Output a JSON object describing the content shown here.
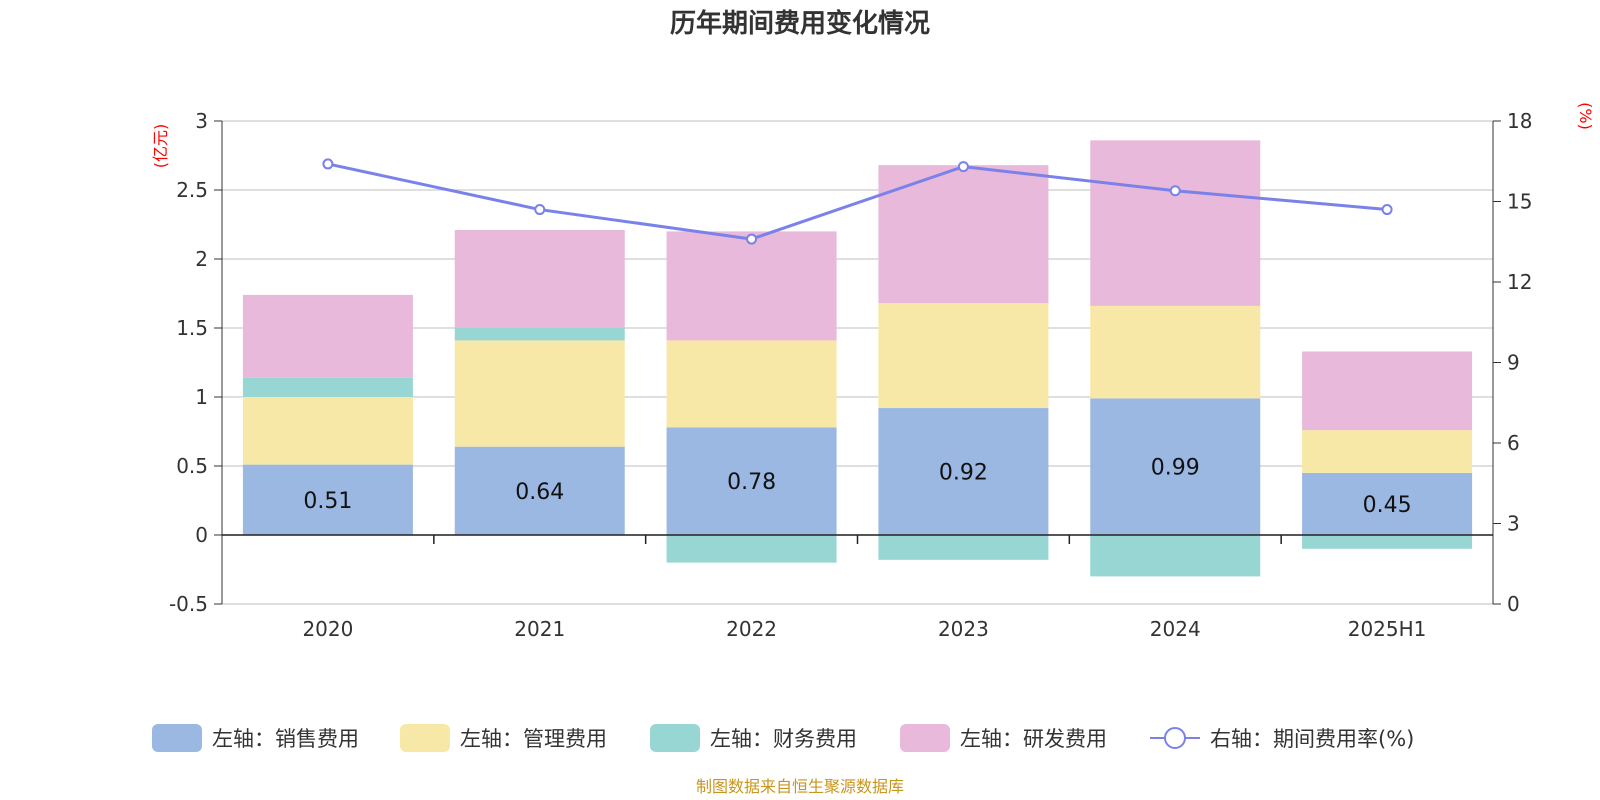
{
  "chart_data": {
    "type": "bar",
    "title": "历年期间费用变化情况",
    "categories": [
      "2020",
      "2021",
      "2022",
      "2023",
      "2024",
      "2025H1"
    ],
    "y_left": {
      "unit": "(亿元)",
      "min": -0.5,
      "max": 3,
      "ticks": [
        "-0.5",
        "0",
        "0.5",
        "1",
        "1.5",
        "2",
        "2.5",
        "3"
      ]
    },
    "y_right": {
      "unit": "(%)",
      "min": 0,
      "max": 18,
      "ticks": [
        "0",
        "3",
        "6",
        "9",
        "12",
        "15",
        "18"
      ]
    },
    "series": [
      {
        "name": "左轴：销售费用",
        "type": "bar",
        "color": "#9bb8e2",
        "values": [
          0.51,
          0.64,
          0.78,
          0.92,
          0.99,
          0.45
        ],
        "labels": [
          "0.51",
          "0.64",
          "0.78",
          "0.92",
          "0.99",
          "0.45"
        ]
      },
      {
        "name": "左轴：管理费用",
        "type": "bar",
        "color": "#f8e8a8",
        "values": [
          0.49,
          0.77,
          0.63,
          0.76,
          0.67,
          0.31
        ]
      },
      {
        "name": "左轴：财务费用",
        "type": "bar",
        "color": "#98d6d4",
        "values": [
          0.14,
          0.09,
          -0.2,
          -0.18,
          -0.3,
          -0.1
        ]
      },
      {
        "name": "左轴：研发费用",
        "type": "bar",
        "color": "#e8b9da",
        "values": [
          0.6,
          0.71,
          0.79,
          1.0,
          1.2,
          0.57
        ]
      },
      {
        "name": "右轴：期间费用率(%)",
        "type": "line",
        "color": "#7a82ea",
        "values": [
          16.4,
          14.7,
          13.6,
          16.3,
          15.4,
          14.7
        ]
      }
    ],
    "grid": true,
    "legend_position": "bottom",
    "source": "制图数据来自恒生聚源数据库"
  }
}
